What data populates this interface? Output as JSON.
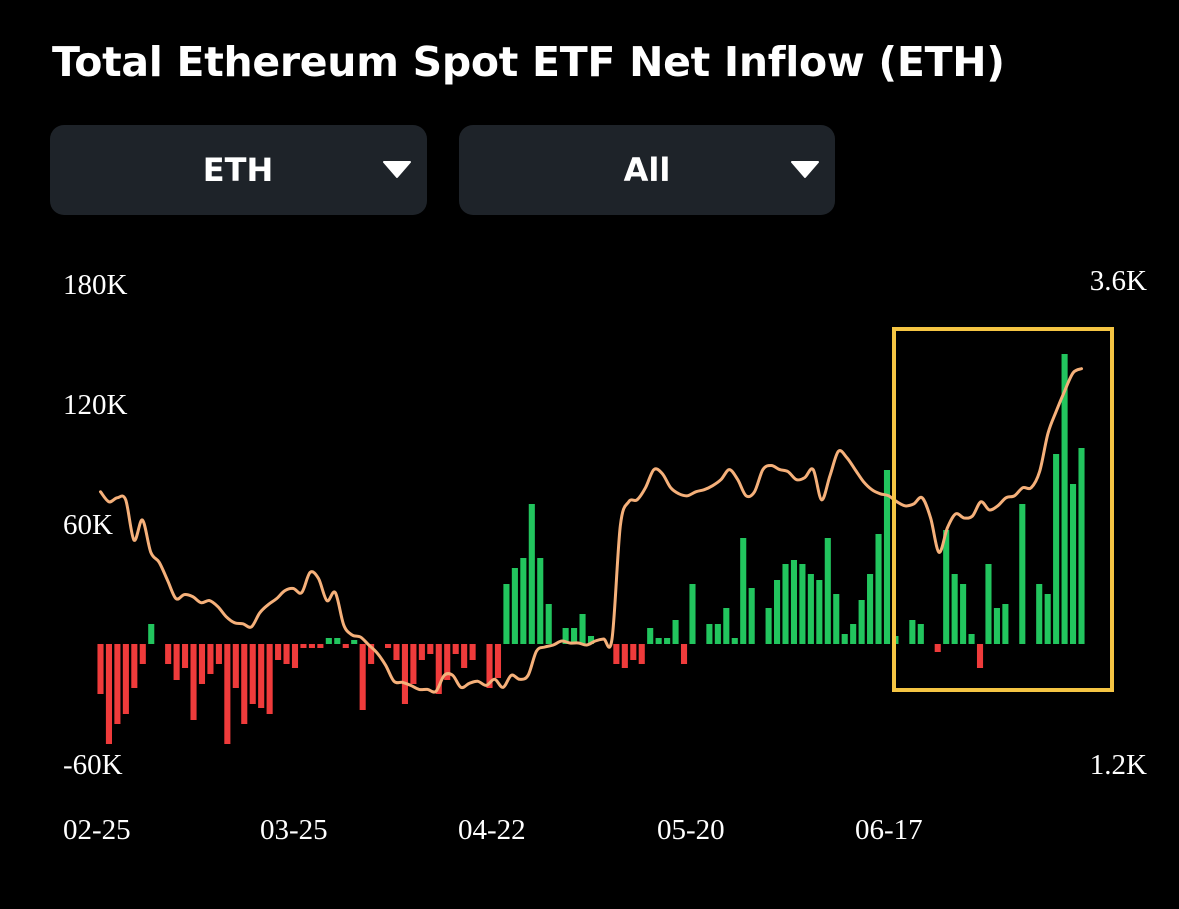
{
  "title": "Total Ethereum Spot ETF Net Inflow (ETH)",
  "filters": {
    "asset": {
      "selected": "ETH"
    },
    "range": {
      "selected": "All"
    }
  },
  "colors": {
    "positive": "#22c55e",
    "negative": "#ef3b3b",
    "line": "#f5b07a",
    "highlight": "#f5c543",
    "panel": "#1e2329"
  },
  "chart_data": {
    "type": "bar",
    "left_axis": {
      "ticks": [
        "180K",
        "120K",
        "60K",
        "-60K"
      ],
      "tick_values": [
        180000,
        120000,
        60000,
        -60000
      ],
      "range": [
        -60000,
        180000
      ]
    },
    "right_axis": {
      "ticks": [
        "3.6K",
        "1.2K"
      ],
      "tick_values": [
        3600,
        1200
      ],
      "range": [
        1200,
        3600
      ]
    },
    "x_ticks": [
      "02-25",
      "03-25",
      "04-22",
      "05-20",
      "06-17"
    ],
    "series": [
      {
        "values": [
          -25000,
          -50000,
          -40000,
          -35000,
          -22000,
          -10000,
          10000,
          0,
          -10000,
          -18000,
          -12000,
          -38000,
          -20000,
          -15000,
          -10000,
          -50000,
          -22000,
          -40000,
          -30000,
          -32000,
          -35000,
          -8000,
          -10000,
          -12000,
          -2000,
          -2000,
          -2000,
          3000,
          3000,
          -2000,
          2000,
          -33000,
          -10000,
          0,
          -2000,
          -8000,
          -30000,
          -20000,
          -8000,
          -5000,
          -25000,
          -18000,
          -5000,
          -12000,
          -8000,
          0,
          -22000,
          -17000,
          30000,
          38000,
          43000,
          70000,
          43000,
          20000,
          0,
          8000,
          8000,
          15000,
          4000,
          0,
          0,
          -10000,
          -12000,
          -8000,
          -10000,
          8000,
          3000,
          3000,
          12000,
          -10000,
          30000,
          0,
          10000,
          10000,
          18000,
          3000,
          53000,
          28000,
          0,
          18000,
          32000,
          40000,
          42000,
          40000,
          35000,
          32000,
          53000,
          25000,
          5000,
          10000,
          22000,
          35000,
          55000,
          87000,
          4000,
          0,
          12000,
          10000,
          0,
          -4000,
          57000,
          35000,
          30000,
          5000,
          -12000,
          40000,
          18000,
          20000,
          0,
          70000,
          0,
          30000,
          25000,
          95000,
          145000,
          80000,
          98000
        ]
      }
    ],
    "price_line": {
      "values": [
        2550,
        2500,
        2520,
        2510,
        2310,
        2410,
        2250,
        2200,
        2110,
        2020,
        2040,
        2030,
        2000,
        2010,
        1980,
        1930,
        1900,
        1895,
        1880,
        1950,
        1990,
        2020,
        2060,
        2070,
        2050,
        2150,
        2120,
        2010,
        2050,
        1890,
        1840,
        1830,
        1790,
        1750,
        1690,
        1610,
        1605,
        1590,
        1570,
        1570,
        1560,
        1640,
        1640,
        1580,
        1600,
        1610,
        1590,
        1620,
        1580,
        1640,
        1620,
        1640,
        1760,
        1780,
        1790,
        1810,
        1800,
        1800,
        1790,
        1810,
        1820,
        1820,
        2380,
        2500,
        2510,
        2570,
        2660,
        2640,
        2570,
        2540,
        2530,
        2550,
        2560,
        2580,
        2610,
        2660,
        2610,
        2530,
        2550,
        2660,
        2680,
        2660,
        2650,
        2610,
        2620,
        2660,
        2510,
        2630,
        2750,
        2720,
        2660,
        2600,
        2560,
        2540,
        2530,
        2500,
        2480,
        2490,
        2520,
        2420,
        2250,
        2370,
        2440,
        2420,
        2430,
        2500,
        2460,
        2480,
        2520,
        2530,
        2570,
        2570,
        2650,
        2840,
        2950,
        3050,
        3140,
        3160
      ]
    }
  }
}
